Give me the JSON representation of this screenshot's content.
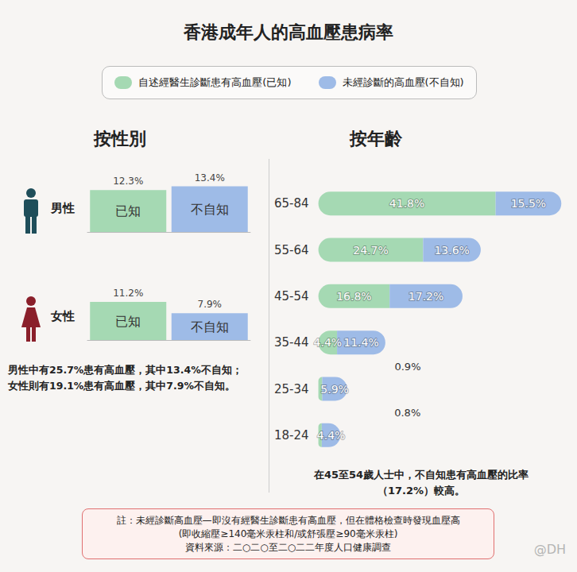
{
  "title": "香港成年人的高血壓患病率",
  "chart_data": [
    {
      "type": "bar",
      "title": "按性別",
      "categories": [
        "男性",
        "女性"
      ],
      "series": [
        {
          "name": "自述經醫生診斷患有高血壓(已知)",
          "color": "#a5d9b3",
          "inner_label": "已知",
          "values": [
            12.3,
            11.2
          ],
          "value_labels": [
            "12.3%",
            "11.2%"
          ]
        },
        {
          "name": "未經診斷的高血壓(不自知)",
          "color": "#9ebbe7",
          "inner_label": "不自知",
          "values": [
            13.4,
            7.9
          ],
          "value_labels": [
            "13.4%",
            "7.9%"
          ]
        }
      ],
      "ylim": [
        0,
        14
      ],
      "data_labels": true,
      "tick_labels": false,
      "legend": "top",
      "annotations": [
        "男性中有25.7%患有高血壓，其中13.4%不自知；",
        "女性則有19.1%患有高血壓，其中7.9%不自知。"
      ]
    },
    {
      "type": "bar",
      "title": "按年齡",
      "orientation": "horizontal",
      "stacked": true,
      "categories": [
        "65-84",
        "55-64",
        "45-54",
        "35-44",
        "25-34",
        "18-24"
      ],
      "series": [
        {
          "name": "自述經醫生診斷患有高血壓(已知)",
          "color": "#a5d9b3",
          "values": [
            41.8,
            24.7,
            16.8,
            4.4,
            0.9,
            0.8
          ],
          "value_labels": [
            "41.8%",
            "24.7%",
            "16.8%",
            "4.4%",
            "0.9%",
            "0.8%"
          ]
        },
        {
          "name": "未經診斷的高血壓(不自知)",
          "color": "#9ebbe7",
          "values": [
            15.5,
            13.6,
            17.2,
            11.4,
            5.9,
            4.4
          ],
          "value_labels": [
            "15.5%",
            "13.6%",
            "17.2%",
            "11.4%",
            "5.9%",
            "4.4%"
          ]
        }
      ],
      "xlim": [
        0,
        58
      ],
      "data_labels": true,
      "tick_labels": "y",
      "legend": "top",
      "annotations": [
        "在45至54歲人士中，不自知患有高血壓的比率",
        "（17.2%）較高。"
      ]
    }
  ],
  "footnote": [
    "註：未經診斷高血壓—即沒有經醫生診斷患有高血壓，但在體格檢查時發現血壓高",
    "(即收縮壓≥140毫米汞柱和/或舒張壓≥90毫米汞柱)",
    "資料來源：二○二○至二○二二年度人口健康調查"
  ],
  "watermark": "@DH"
}
